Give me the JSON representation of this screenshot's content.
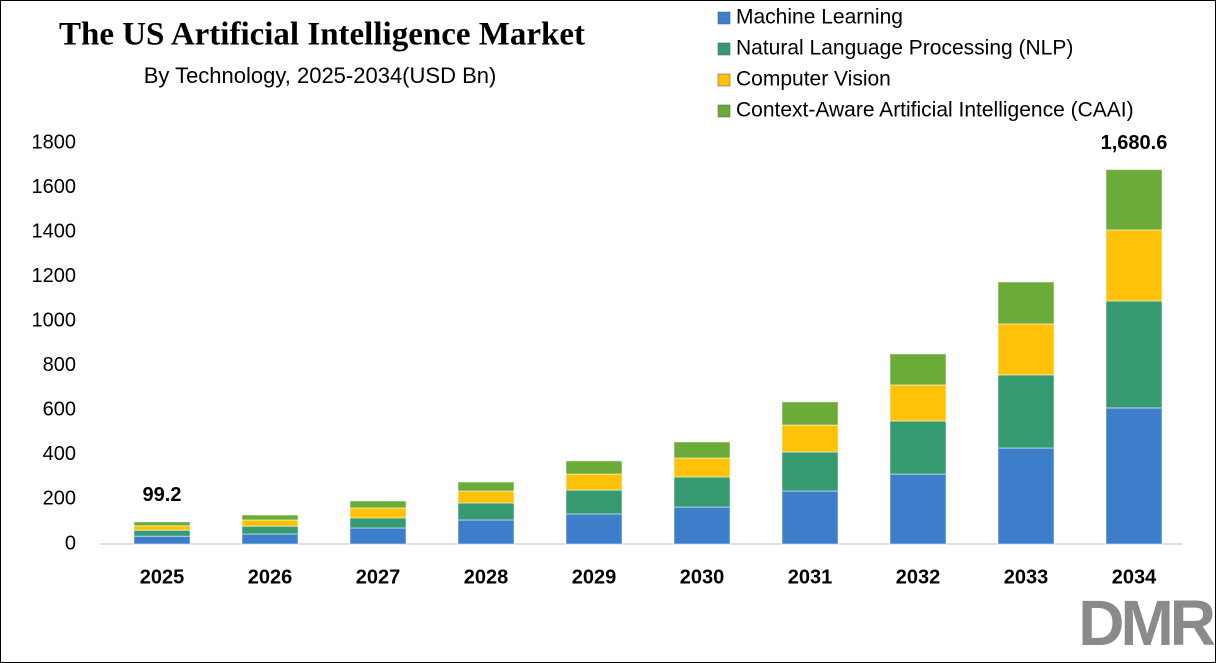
{
  "chart_data": {
    "type": "stacked_bar",
    "title": "The US Artificial Intelligence Market",
    "subtitle": "By Technology, 2025-2034(USD Bn)",
    "categories": [
      "2025",
      "2026",
      "2027",
      "2028",
      "2029",
      "2030",
      "2031",
      "2032",
      "2033",
      "2034"
    ],
    "series": [
      {
        "name": "Machine Learning",
        "color": "#3d7ecb",
        "values": [
          35,
          45,
          72,
          108,
          135,
          166,
          238,
          314,
          431,
          611
        ]
      },
      {
        "name": "Natural Language Processing (NLP)",
        "color": "#359a70",
        "values": [
          27,
          35,
          45,
          76,
          107,
          135,
          175,
          238,
          328,
          480
        ]
      },
      {
        "name": "Computer Vision",
        "color": "#ffc208",
        "values": [
          20,
          28,
          45,
          54,
          72,
          85,
          121,
          162,
          229,
          319
        ]
      },
      {
        "name": "Context-Aware Artificial Intelligence (CAAI)",
        "color": "#6bab38",
        "values": [
          17.2,
          22,
          31,
          40,
          59,
          72,
          104,
          139,
          188,
          270.6
        ]
      }
    ],
    "annotations": [
      {
        "x": "2025",
        "value": 99.2,
        "label": "99.2"
      },
      {
        "x": "2034",
        "value": 1680.6,
        "label": "1,680.6"
      }
    ],
    "ylim": [
      0,
      1800
    ],
    "yticks": [
      0,
      200,
      400,
      600,
      800,
      1000,
      1200,
      1400,
      1600,
      1800
    ],
    "grid": false,
    "legend": "top-right",
    "watermark": "DMR"
  }
}
